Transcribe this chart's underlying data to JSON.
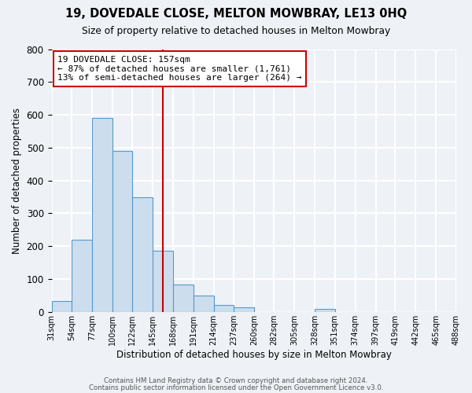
{
  "title": "19, DOVEDALE CLOSE, MELTON MOWBRAY, LE13 0HQ",
  "subtitle": "Size of property relative to detached houses in Melton Mowbray",
  "xlabel": "Distribution of detached houses by size in Melton Mowbray",
  "ylabel": "Number of detached properties",
  "bar_values": [
    33,
    220,
    590,
    490,
    350,
    185,
    83,
    50,
    20,
    13,
    0,
    0,
    0,
    8,
    0,
    0,
    0,
    0,
    0,
    0
  ],
  "bin_left_edges": [
    31,
    54,
    77,
    100,
    122,
    145,
    168,
    191,
    214,
    237,
    260,
    282,
    305,
    328,
    351,
    374,
    397,
    419,
    442,
    465
  ],
  "bin_widths": [
    23,
    23,
    23,
    22,
    23,
    23,
    23,
    23,
    23,
    23,
    22,
    23,
    23,
    23,
    23,
    23,
    22,
    23,
    23,
    23
  ],
  "tick_labels": [
    "31sqm",
    "54sqm",
    "77sqm",
    "100sqm",
    "122sqm",
    "145sqm",
    "168sqm",
    "191sqm",
    "214sqm",
    "237sqm",
    "260sqm",
    "282sqm",
    "305sqm",
    "328sqm",
    "351sqm",
    "374sqm",
    "397sqm",
    "419sqm",
    "442sqm",
    "465sqm",
    "488sqm"
  ],
  "bar_color": "#ccdded",
  "bar_edgecolor": "#5599cc",
  "vline_x": 157,
  "vline_color": "#cc0000",
  "ylim": [
    0,
    800
  ],
  "yticks": [
    0,
    100,
    200,
    300,
    400,
    500,
    600,
    700,
    800
  ],
  "annotation_title": "19 DOVEDALE CLOSE: 157sqm",
  "annotation_line1": "← 87% of detached houses are smaller (1,761)",
  "annotation_line2": "13% of semi-detached houses are larger (264) →",
  "annotation_box_facecolor": "#ffffff",
  "annotation_box_edgecolor": "#cc0000",
  "footer1": "Contains HM Land Registry data © Crown copyright and database right 2024.",
  "footer2": "Contains public sector information licensed under the Open Government Licence v3.0.",
  "background_color": "#eef2f7",
  "grid_color": "#ffffff"
}
